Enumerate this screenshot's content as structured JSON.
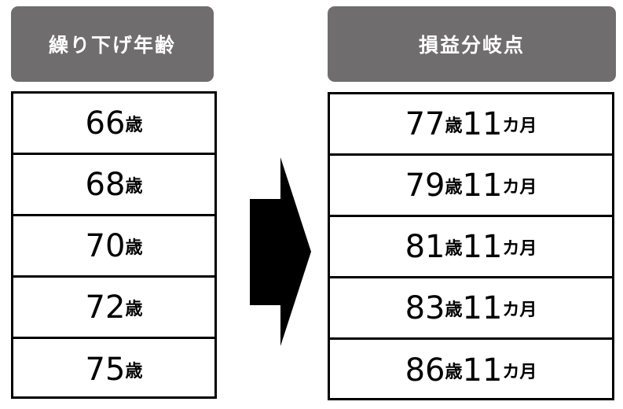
{
  "left": {
    "header": "繰り下げ年齢",
    "rows": [
      {
        "num": "66",
        "unit": "歳"
      },
      {
        "num": "68",
        "unit": "歳"
      },
      {
        "num": "70",
        "unit": "歳"
      },
      {
        "num": "72",
        "unit": "歳"
      },
      {
        "num": "75",
        "unit": "歳"
      }
    ]
  },
  "right": {
    "header": "損益分岐点",
    "rows": [
      {
        "age": "77",
        "age_unit": "歳",
        "months": "11",
        "months_unit": "カ月"
      },
      {
        "age": "79",
        "age_unit": "歳",
        "months": "11",
        "months_unit": "カ月"
      },
      {
        "age": "81",
        "age_unit": "歳",
        "months": "11",
        "months_unit": "カ月"
      },
      {
        "age": "83",
        "age_unit": "歳",
        "months": "11",
        "months_unit": "カ月"
      },
      {
        "age": "86",
        "age_unit": "歳",
        "months": "11",
        "months_unit": "カ月"
      }
    ]
  },
  "colors": {
    "header_bg": "#6f6d6d",
    "arrow": "#000000",
    "border": "#000000"
  },
  "arrow_icon": "right-arrow-icon"
}
